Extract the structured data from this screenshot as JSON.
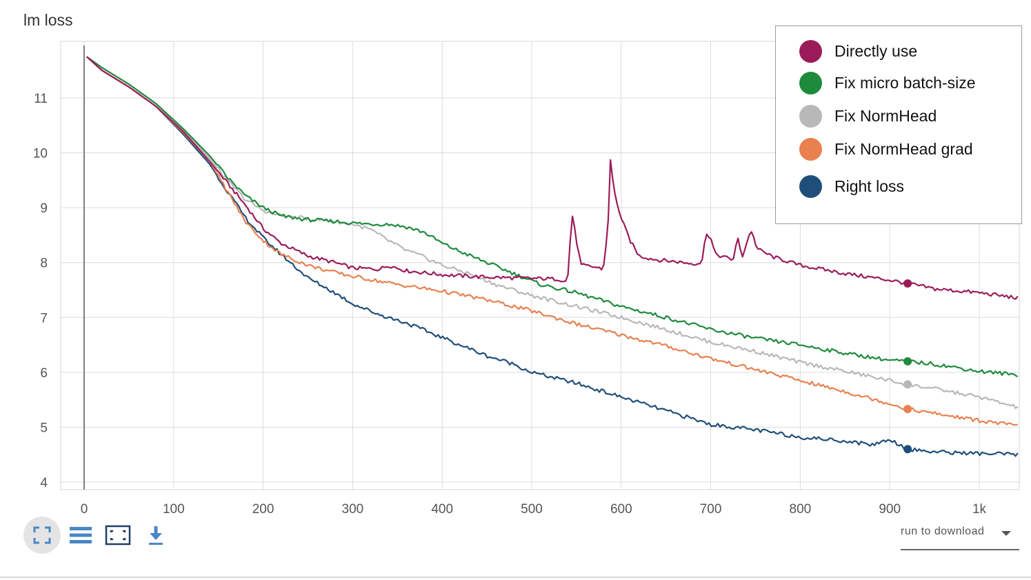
{
  "chart_data": {
    "type": "line",
    "title": "lm loss",
    "xlim": [
      0,
      1050
    ],
    "ylim": [
      3.9,
      11.95
    ],
    "xticks": [
      0,
      100,
      200,
      300,
      400,
      500,
      600,
      700,
      800,
      900,
      1000
    ],
    "xtick_labels": [
      "0",
      "100",
      "200",
      "300",
      "400",
      "500",
      "600",
      "700",
      "800",
      "900",
      "1k"
    ],
    "yticks": [
      4,
      5,
      6,
      7,
      8,
      9,
      10,
      11
    ],
    "ytick_labels": [
      "4",
      "5",
      "6",
      "7",
      "8",
      "9",
      "10",
      "11"
    ],
    "grid": true,
    "legend_position": "top-right",
    "series": [
      {
        "name": "Directly use",
        "color": "#9b1b5a",
        "marker_x": 920,
        "points": [
          [
            3,
            11.75
          ],
          [
            20,
            11.5
          ],
          [
            50,
            11.2
          ],
          [
            80,
            10.85
          ],
          [
            110,
            10.4
          ],
          [
            140,
            9.85
          ],
          [
            160,
            9.45
          ],
          [
            180,
            9.05
          ],
          [
            200,
            8.62
          ],
          [
            220,
            8.35
          ],
          [
            250,
            8.12
          ],
          [
            280,
            8.0
          ],
          [
            300,
            7.9
          ],
          [
            330,
            7.88
          ],
          [
            340,
            7.95
          ],
          [
            360,
            7.85
          ],
          [
            400,
            7.78
          ],
          [
            440,
            7.74
          ],
          [
            480,
            7.72
          ],
          [
            530,
            7.7
          ],
          [
            540,
            7.65
          ],
          [
            545,
            8.9
          ],
          [
            550,
            8.4
          ],
          [
            555,
            7.95
          ],
          [
            570,
            7.92
          ],
          [
            580,
            7.88
          ],
          [
            585,
            8.6
          ],
          [
            588,
            9.85
          ],
          [
            592,
            9.3
          ],
          [
            600,
            8.8
          ],
          [
            610,
            8.4
          ],
          [
            620,
            8.12
          ],
          [
            640,
            8.05
          ],
          [
            660,
            8.02
          ],
          [
            680,
            7.98
          ],
          [
            690,
            8.0
          ],
          [
            695,
            8.55
          ],
          [
            700,
            8.45
          ],
          [
            705,
            8.15
          ],
          [
            715,
            8.1
          ],
          [
            725,
            8.05
          ],
          [
            730,
            8.45
          ],
          [
            735,
            8.1
          ],
          [
            745,
            8.6
          ],
          [
            752,
            8.25
          ],
          [
            770,
            8.1
          ],
          [
            800,
            7.95
          ],
          [
            850,
            7.8
          ],
          [
            900,
            7.68
          ],
          [
            920,
            7.62
          ],
          [
            950,
            7.52
          ],
          [
            1000,
            7.45
          ],
          [
            1045,
            7.35
          ]
        ]
      },
      {
        "name": "Fix micro batch-size",
        "color": "#1e8a3c",
        "marker_x": 920,
        "points": [
          [
            3,
            11.75
          ],
          [
            20,
            11.55
          ],
          [
            50,
            11.25
          ],
          [
            80,
            10.9
          ],
          [
            110,
            10.45
          ],
          [
            140,
            9.95
          ],
          [
            160,
            9.55
          ],
          [
            180,
            9.22
          ],
          [
            200,
            9.0
          ],
          [
            220,
            8.85
          ],
          [
            250,
            8.78
          ],
          [
            280,
            8.75
          ],
          [
            300,
            8.72
          ],
          [
            320,
            8.7
          ],
          [
            340,
            8.7
          ],
          [
            360,
            8.65
          ],
          [
            380,
            8.55
          ],
          [
            400,
            8.35
          ],
          [
            420,
            8.2
          ],
          [
            450,
            8.0
          ],
          [
            480,
            7.8
          ],
          [
            510,
            7.6
          ],
          [
            550,
            7.45
          ],
          [
            600,
            7.2
          ],
          [
            650,
            7.0
          ],
          [
            700,
            6.78
          ],
          [
            750,
            6.62
          ],
          [
            800,
            6.5
          ],
          [
            850,
            6.35
          ],
          [
            900,
            6.22
          ],
          [
            920,
            6.2
          ],
          [
            950,
            6.15
          ],
          [
            1000,
            6.02
          ],
          [
            1045,
            5.95
          ]
        ]
      },
      {
        "name": "Fix NormHead",
        "color": "#b8b8b8",
        "marker_x": 920,
        "points": [
          [
            3,
            11.75
          ],
          [
            20,
            11.55
          ],
          [
            50,
            11.25
          ],
          [
            80,
            10.9
          ],
          [
            110,
            10.42
          ],
          [
            140,
            9.9
          ],
          [
            160,
            9.5
          ],
          [
            180,
            9.15
          ],
          [
            200,
            8.95
          ],
          [
            220,
            8.85
          ],
          [
            250,
            8.8
          ],
          [
            280,
            8.75
          ],
          [
            300,
            8.7
          ],
          [
            320,
            8.6
          ],
          [
            340,
            8.4
          ],
          [
            360,
            8.22
          ],
          [
            380,
            8.1
          ],
          [
            400,
            7.95
          ],
          [
            430,
            7.8
          ],
          [
            460,
            7.6
          ],
          [
            500,
            7.4
          ],
          [
            550,
            7.2
          ],
          [
            600,
            7.0
          ],
          [
            650,
            6.78
          ],
          [
            700,
            6.55
          ],
          [
            750,
            6.38
          ],
          [
            800,
            6.18
          ],
          [
            850,
            6.02
          ],
          [
            900,
            5.85
          ],
          [
            920,
            5.78
          ],
          [
            950,
            5.7
          ],
          [
            1000,
            5.55
          ],
          [
            1045,
            5.35
          ]
        ]
      },
      {
        "name": "Fix NormHead grad",
        "color": "#e8804f",
        "marker_x": 920,
        "points": [
          [
            3,
            11.75
          ],
          [
            20,
            11.5
          ],
          [
            50,
            11.2
          ],
          [
            80,
            10.85
          ],
          [
            110,
            10.38
          ],
          [
            140,
            9.85
          ],
          [
            160,
            9.3
          ],
          [
            180,
            8.75
          ],
          [
            200,
            8.4
          ],
          [
            220,
            8.15
          ],
          [
            250,
            7.95
          ],
          [
            280,
            7.82
          ],
          [
            300,
            7.75
          ],
          [
            350,
            7.6
          ],
          [
            400,
            7.48
          ],
          [
            450,
            7.32
          ],
          [
            500,
            7.12
          ],
          [
            550,
            6.88
          ],
          [
            600,
            6.68
          ],
          [
            650,
            6.48
          ],
          [
            700,
            6.25
          ],
          [
            750,
            6.05
          ],
          [
            800,
            5.85
          ],
          [
            850,
            5.65
          ],
          [
            900,
            5.43
          ],
          [
            920,
            5.33
          ],
          [
            950,
            5.25
          ],
          [
            1000,
            5.12
          ],
          [
            1045,
            5.02
          ]
        ]
      },
      {
        "name": "Right loss",
        "color": "#1f4e7a",
        "marker_x": 920,
        "points": [
          [
            3,
            11.75
          ],
          [
            20,
            11.5
          ],
          [
            50,
            11.2
          ],
          [
            80,
            10.85
          ],
          [
            110,
            10.35
          ],
          [
            140,
            9.8
          ],
          [
            160,
            9.3
          ],
          [
            180,
            8.82
          ],
          [
            200,
            8.45
          ],
          [
            220,
            8.15
          ],
          [
            250,
            7.72
          ],
          [
            280,
            7.45
          ],
          [
            300,
            7.25
          ],
          [
            330,
            7.05
          ],
          [
            360,
            6.9
          ],
          [
            390,
            6.7
          ],
          [
            420,
            6.5
          ],
          [
            450,
            6.3
          ],
          [
            480,
            6.15
          ],
          [
            500,
            6.0
          ],
          [
            550,
            5.8
          ],
          [
            600,
            5.55
          ],
          [
            650,
            5.3
          ],
          [
            700,
            5.05
          ],
          [
            750,
            4.95
          ],
          [
            800,
            4.82
          ],
          [
            850,
            4.75
          ],
          [
            880,
            4.68
          ],
          [
            900,
            4.78
          ],
          [
            920,
            4.6
          ],
          [
            950,
            4.55
          ],
          [
            1000,
            4.52
          ],
          [
            1045,
            4.5
          ]
        ]
      }
    ]
  },
  "toolbar": {
    "fullscreen_icon": "fullscreen-icon",
    "data_icon": "list-icon",
    "fit_icon": "fit-domain-icon",
    "download_icon": "download-icon",
    "accent_color": "#4a86c5"
  },
  "run_select": {
    "label": "run to download"
  }
}
